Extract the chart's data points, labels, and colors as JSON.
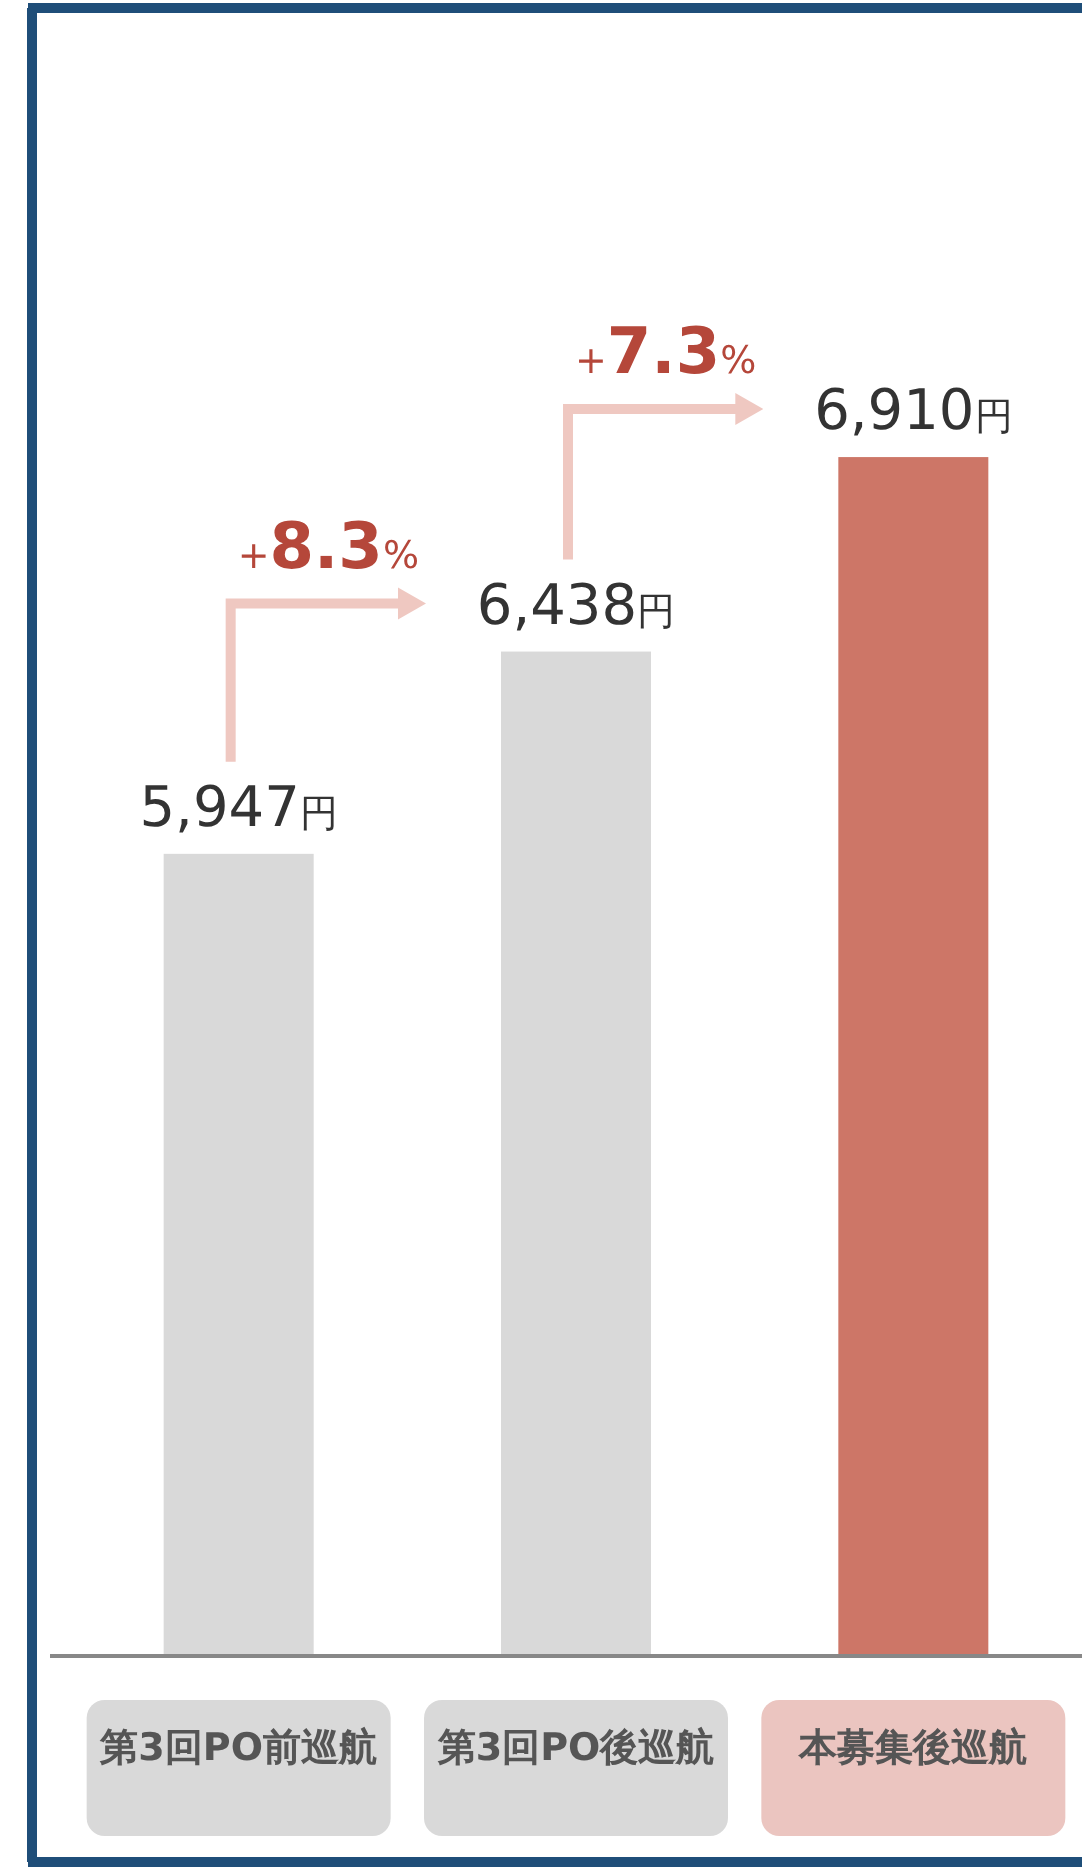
{
  "chart_data": {
    "type": "bar",
    "categories": [
      "第3回PO前巡航",
      "第3回PO後巡航",
      "本募集後巡航"
    ],
    "values": [
      5947,
      6438,
      6910
    ],
    "colors": [
      "#d9d9d9",
      "#d9d9d9",
      "#cd7667"
    ],
    "value_labels": [
      "5,947円",
      "6,438円",
      "6,910円"
    ],
    "annotations": [
      "+8.3%",
      "+7.3%"
    ],
    "ylim": [
      4000,
      8000
    ],
    "tick_labels": "x"
  }
}
